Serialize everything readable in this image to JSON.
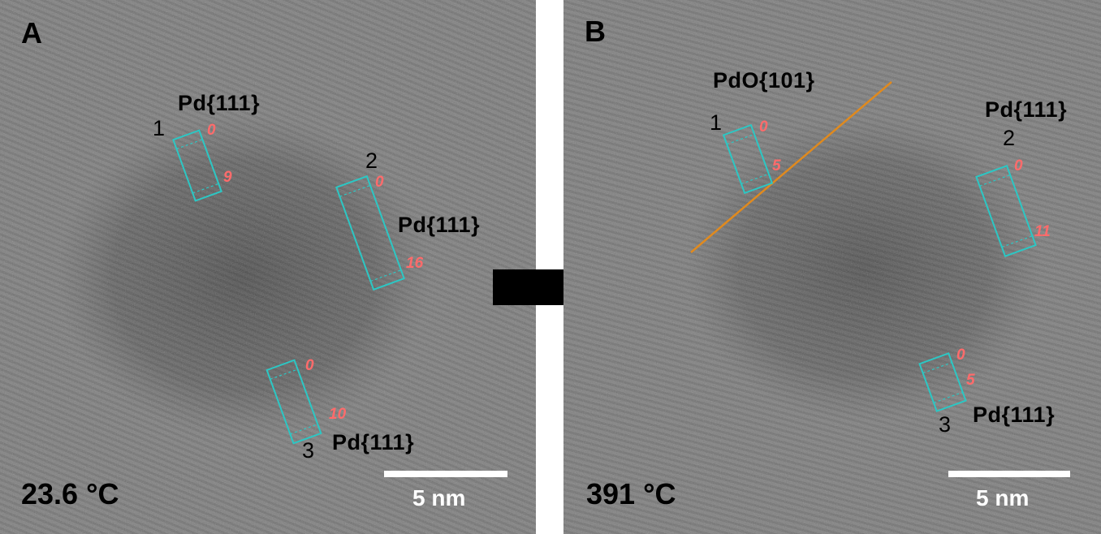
{
  "panels": {
    "a": {
      "letter": "A",
      "temperature": "23.6 °C",
      "scale_bar": "5 nm",
      "regions": [
        {
          "number": "1",
          "plane": "Pd{111}",
          "tick_start": "0",
          "tick_end": "9"
        },
        {
          "number": "2",
          "plane": "Pd{111}",
          "tick_start": "0",
          "tick_end": "16"
        },
        {
          "number": "3",
          "plane": "Pd{111}",
          "tick_start": "0",
          "tick_end": "10"
        }
      ]
    },
    "b": {
      "letter": "B",
      "temperature": "391 °C",
      "scale_bar": "5 nm",
      "regions": [
        {
          "number": "1",
          "plane": "PdO{101}",
          "tick_start": "0",
          "tick_end": "5"
        },
        {
          "number": "2",
          "plane": "Pd{111}",
          "tick_start": "0",
          "tick_end": "11"
        },
        {
          "number": "3",
          "plane": "Pd{111}",
          "tick_start": "0",
          "tick_end": "5"
        }
      ]
    }
  },
  "colors": {
    "box": "#2cc7c4",
    "tick_label": "#ff6b6b",
    "boundary_line": "#e08a1e",
    "scale_bar": "#ffffff"
  }
}
